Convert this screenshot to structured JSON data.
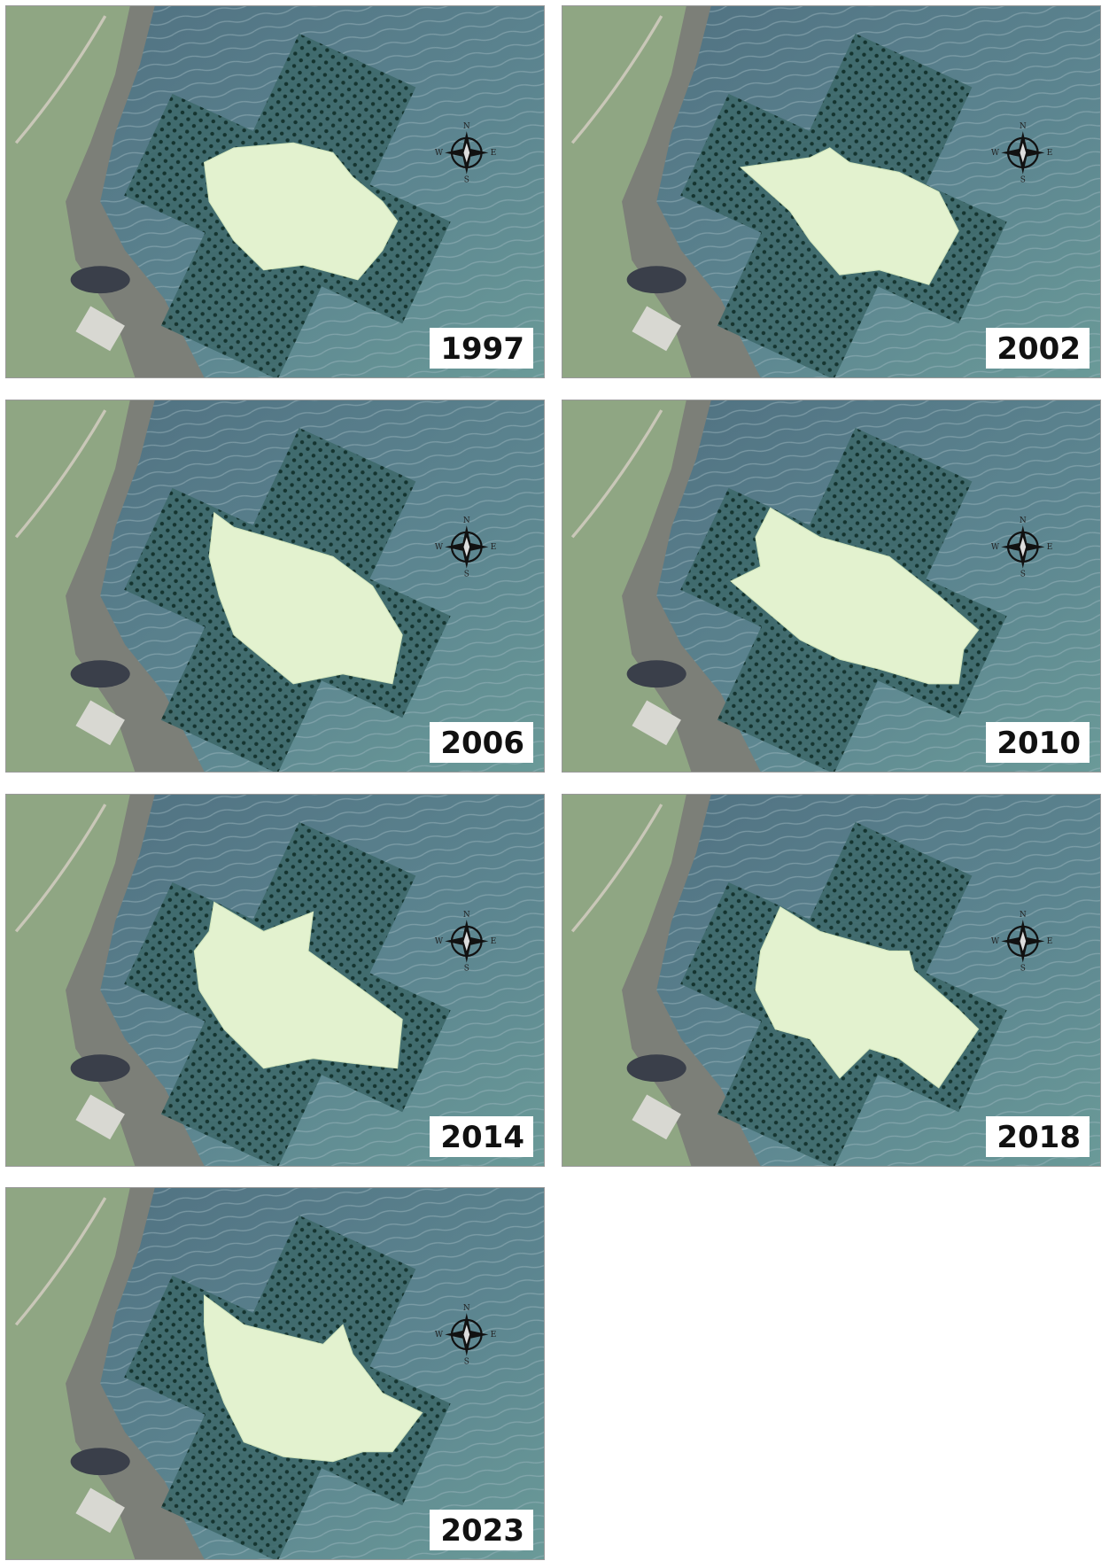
{
  "panels": [
    {
      "year": "1997"
    },
    {
      "year": "2002"
    },
    {
      "year": "2006"
    },
    {
      "year": "2010"
    },
    {
      "year": "2014"
    },
    {
      "year": "2018"
    },
    {
      "year": "2023"
    }
  ],
  "compass_labels": {
    "north": "N",
    "east": "E",
    "south": "S",
    "west": "W"
  }
}
